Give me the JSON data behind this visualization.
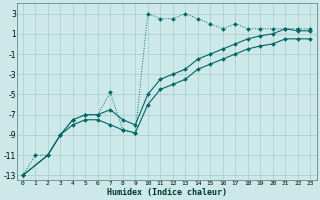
{
  "xlabel": "Humidex (Indice chaleur)",
  "bg_color": "#cce8e8",
  "grid_color": "#aacccc",
  "line_color": "#006666",
  "xlim": [
    -0.5,
    23.5
  ],
  "ylim": [
    -13.5,
    4.0
  ],
  "yticks": [
    3,
    1,
    -1,
    -3,
    -5,
    -7,
    -9,
    -11,
    -13
  ],
  "xticks": [
    0,
    1,
    2,
    3,
    4,
    5,
    6,
    7,
    8,
    9,
    10,
    11,
    12,
    13,
    14,
    15,
    16,
    17,
    18,
    19,
    20,
    21,
    22,
    23
  ],
  "series1_x": [
    0,
    1,
    2,
    3,
    4,
    5,
    6,
    7,
    8,
    9,
    10,
    11,
    12,
    13,
    14,
    15,
    16,
    17,
    18,
    19,
    20,
    21,
    22,
    23
  ],
  "series1_y": [
    -13,
    -11,
    -11,
    -9,
    -7.5,
    -7,
    -7,
    -4.8,
    -8.5,
    -8.8,
    3.0,
    2.5,
    2.5,
    3.0,
    2.5,
    2.0,
    1.5,
    2.0,
    1.5,
    1.5,
    1.5,
    1.5,
    1.5,
    1.5
  ],
  "series2_x": [
    0,
    2,
    3,
    4,
    5,
    6,
    7,
    8,
    9,
    10,
    11,
    12,
    13,
    14,
    15,
    16,
    17,
    18,
    19,
    20,
    21,
    22,
    23
  ],
  "series2_y": [
    -13,
    -11,
    -9.0,
    -7.5,
    -7.0,
    -7.0,
    -6.5,
    -7.5,
    -8.0,
    -5.0,
    -3.5,
    -3.0,
    -2.5,
    -1.5,
    -1.0,
    -0.5,
    0.0,
    0.5,
    0.8,
    1.0,
    1.5,
    1.3,
    1.3
  ],
  "series3_x": [
    0,
    2,
    3,
    4,
    5,
    6,
    7,
    8,
    9,
    10,
    11,
    12,
    13,
    14,
    15,
    16,
    17,
    18,
    19,
    20,
    21,
    22,
    23
  ],
  "series3_y": [
    -13,
    -11,
    -9.0,
    -8.0,
    -7.5,
    -7.5,
    -8.0,
    -8.5,
    -8.8,
    -6.0,
    -4.5,
    -4.0,
    -3.5,
    -2.5,
    -2.0,
    -1.5,
    -1.0,
    -0.5,
    -0.2,
    0.0,
    0.5,
    0.5,
    0.5
  ]
}
